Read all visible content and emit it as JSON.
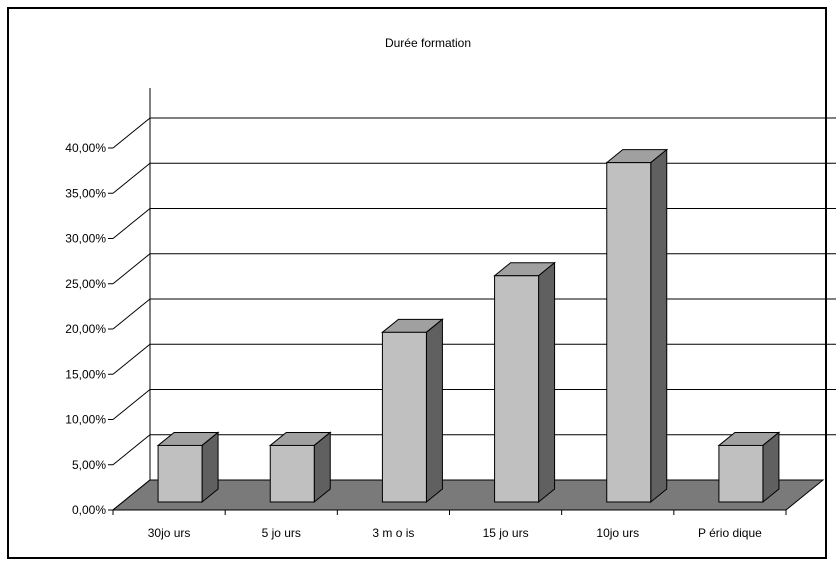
{
  "chart_data": {
    "type": "bar",
    "title": "Durée formation",
    "categories": [
      "30jo urs",
      "5 jo urs",
      "3 m o is",
      "15 jo urs",
      "10jo urs",
      "P ério dique"
    ],
    "values": [
      6.25,
      6.25,
      18.75,
      25.0,
      37.5,
      6.25
    ],
    "y_ticks": [
      "0,00%",
      "5,00%",
      "10,00%",
      "15,00%",
      "20,00%",
      "25,00%",
      "30,00%",
      "35,00%",
      "40,00%"
    ],
    "ylim": [
      0,
      40
    ],
    "grid": true,
    "legend": "none",
    "colors": {
      "bar_front": "#c0c0c0",
      "bar_side": "#606060",
      "bar_top": "#a0a0a0",
      "floor": "#7a7a7a",
      "grid": "#000000"
    }
  }
}
